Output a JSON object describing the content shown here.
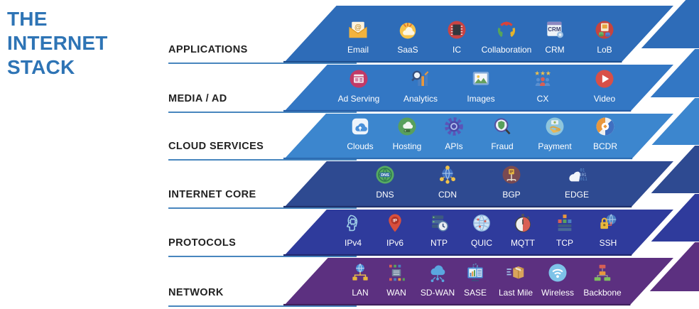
{
  "title": {
    "lines": [
      "THE",
      "INTERNET",
      "STACK"
    ],
    "color": "#2E74B5"
  },
  "colors": {
    "background": "#ffffff",
    "underline": "#2E74B5",
    "row_label": "#222222",
    "item_label": "#ffffff"
  },
  "layers": [
    {
      "label": "APPLICATIONS",
      "fill": "#2e6cb8",
      "edge": "#1d4f8f",
      "items": [
        {
          "label": "Email",
          "icon": "email-icon"
        },
        {
          "label": "SaaS",
          "icon": "saas-icon"
        },
        {
          "label": "IC",
          "icon": "ic-icon"
        },
        {
          "label": "Collaboration",
          "icon": "collaboration-icon"
        },
        {
          "label": "CRM",
          "icon": "crm-icon"
        },
        {
          "label": "LoB",
          "icon": "lob-icon"
        }
      ]
    },
    {
      "label": "MEDIA / AD",
      "fill": "#3377c4",
      "edge": "#275ea6",
      "items": [
        {
          "label": "Ad Serving",
          "icon": "ad-serving-icon"
        },
        {
          "label": "Analytics",
          "icon": "analytics-icon"
        },
        {
          "label": "Images",
          "icon": "images-icon"
        },
        {
          "label": "CX",
          "icon": "cx-icon"
        },
        {
          "label": "Video",
          "icon": "video-icon"
        }
      ]
    },
    {
      "label": "CLOUD SERVICES",
      "fill": "#3c86ce",
      "edge": "#2d6cb2",
      "items": [
        {
          "label": "Clouds",
          "icon": "clouds-icon"
        },
        {
          "label": "Hosting",
          "icon": "hosting-icon"
        },
        {
          "label": "APIs",
          "icon": "apis-icon"
        },
        {
          "label": "Fraud",
          "icon": "fraud-icon"
        },
        {
          "label": "Payment",
          "icon": "payment-icon"
        },
        {
          "label": "BCDR",
          "icon": "bcdr-icon"
        }
      ]
    },
    {
      "label": "INTERNET CORE",
      "fill": "#2e4a91",
      "edge": "#1f316b",
      "items": [
        {
          "label": "DNS",
          "icon": "dns-icon"
        },
        {
          "label": "CDN",
          "icon": "cdn-icon"
        },
        {
          "label": "BGP",
          "icon": "bgp-icon"
        },
        {
          "label": "EDGE",
          "icon": "edge-icon"
        }
      ]
    },
    {
      "label": "PROTOCOLS",
      "fill": "#2f3b9c",
      "edge": "#20276f",
      "items": [
        {
          "label": "IPv4",
          "icon": "ipv4-icon"
        },
        {
          "label": "IPv6",
          "icon": "ipv6-icon"
        },
        {
          "label": "NTP",
          "icon": "ntp-icon"
        },
        {
          "label": "QUIC",
          "icon": "quic-icon"
        },
        {
          "label": "MQTT",
          "icon": "mqtt-icon"
        },
        {
          "label": "TCP",
          "icon": "tcp-icon"
        },
        {
          "label": "SSH",
          "icon": "ssh-icon"
        }
      ]
    },
    {
      "label": "NETWORK",
      "fill": "#5c3080",
      "edge": "#3f1f5c",
      "items": [
        {
          "label": "LAN",
          "icon": "lan-icon"
        },
        {
          "label": "WAN",
          "icon": "wan-icon"
        },
        {
          "label": "SD-WAN",
          "icon": "sd-wan-icon"
        },
        {
          "label": "SASE",
          "icon": "sase-icon"
        },
        {
          "label": "Last Mile",
          "icon": "last-mile-icon"
        },
        {
          "label": "Wireless",
          "icon": "wireless-icon"
        },
        {
          "label": "Backbone",
          "icon": "backbone-icon"
        }
      ]
    }
  ]
}
